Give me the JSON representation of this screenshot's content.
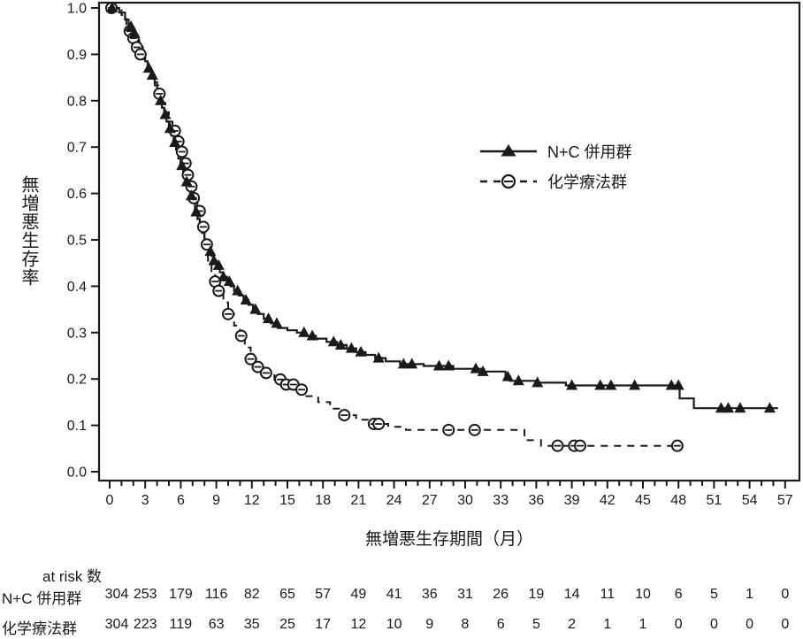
{
  "figure": {
    "background": "#ffffff",
    "ink_color": "#1a1a1a"
  },
  "chart_data": {
    "type": "line",
    "subtype": "kaplan-meier-step-curves",
    "title": "",
    "xlabel": "無増悪生存期間（月）",
    "ylabel": "無増悪生存率",
    "xlim": [
      0,
      57
    ],
    "ylim": [
      0.0,
      1.0
    ],
    "x_major_ticks": [
      0,
      3,
      6,
      9,
      12,
      15,
      18,
      21,
      24,
      27,
      30,
      33,
      36,
      39,
      42,
      45,
      48,
      51,
      54,
      57
    ],
    "x_minor_tick_interval": 1,
    "y_ticks": [
      0.0,
      0.1,
      0.2,
      0.3,
      0.4,
      0.5,
      0.6,
      0.7,
      0.8,
      0.9,
      1.0
    ],
    "grid": false,
    "legend_position": "inside-upper-right",
    "series": [
      {
        "name": "N+C 併用群",
        "line_style": "solid",
        "marker": "filled-triangle",
        "steps": [
          [
            0,
            1.0
          ],
          [
            0.8,
            0.99
          ],
          [
            1.3,
            0.975
          ],
          [
            1.6,
            0.96
          ],
          [
            1.9,
            0.945
          ],
          [
            2.2,
            0.93
          ],
          [
            2.5,
            0.915
          ],
          [
            2.8,
            0.9
          ],
          [
            3.0,
            0.885
          ],
          [
            3.2,
            0.87
          ],
          [
            3.5,
            0.855
          ],
          [
            3.8,
            0.84
          ],
          [
            4.0,
            0.82
          ],
          [
            4.2,
            0.8
          ],
          [
            4.4,
            0.785
          ],
          [
            4.6,
            0.77
          ],
          [
            4.8,
            0.755
          ],
          [
            5.0,
            0.74
          ],
          [
            5.2,
            0.725
          ],
          [
            5.4,
            0.71
          ],
          [
            5.6,
            0.695
          ],
          [
            5.8,
            0.675
          ],
          [
            6.0,
            0.66
          ],
          [
            6.2,
            0.64
          ],
          [
            6.4,
            0.625
          ],
          [
            6.6,
            0.61
          ],
          [
            6.8,
            0.595
          ],
          [
            7.0,
            0.58
          ],
          [
            7.2,
            0.56
          ],
          [
            7.4,
            0.545
          ],
          [
            7.6,
            0.53
          ],
          [
            7.8,
            0.515
          ],
          [
            8.0,
            0.5
          ],
          [
            8.2,
            0.49
          ],
          [
            8.4,
            0.475
          ],
          [
            8.6,
            0.465
          ],
          [
            8.8,
            0.455
          ],
          [
            9.0,
            0.445
          ],
          [
            9.3,
            0.43
          ],
          [
            9.6,
            0.42
          ],
          [
            9.9,
            0.41
          ],
          [
            10.2,
            0.4
          ],
          [
            10.5,
            0.39
          ],
          [
            10.9,
            0.38
          ],
          [
            11.3,
            0.37
          ],
          [
            11.7,
            0.36
          ],
          [
            12.1,
            0.35
          ],
          [
            12.5,
            0.34
          ],
          [
            13.0,
            0.33
          ],
          [
            13.6,
            0.32
          ],
          [
            14.2,
            0.31
          ],
          [
            15.0,
            0.305
          ],
          [
            15.8,
            0.3
          ],
          [
            16.6,
            0.293
          ],
          [
            17.4,
            0.287
          ],
          [
            18.3,
            0.28
          ],
          [
            19.2,
            0.273
          ],
          [
            20.0,
            0.266
          ],
          [
            20.8,
            0.258
          ],
          [
            21.6,
            0.252
          ],
          [
            22.4,
            0.245
          ],
          [
            23.3,
            0.238
          ],
          [
            24.5,
            0.232
          ],
          [
            26.5,
            0.228
          ],
          [
            29.0,
            0.222
          ],
          [
            31.5,
            0.216
          ],
          [
            33.4,
            0.205
          ],
          [
            33.8,
            0.196
          ],
          [
            36.0,
            0.192
          ],
          [
            38.5,
            0.186
          ],
          [
            48.1,
            0.158
          ],
          [
            49.3,
            0.137
          ],
          [
            56.4,
            0.137
          ]
        ],
        "censor_marker_months": [
          0.2,
          1.8,
          2.1,
          3.3,
          3.6,
          4.3,
          4.7,
          5.1,
          5.5,
          6.1,
          6.5,
          6.9,
          7.3,
          8.5,
          8.8,
          9.2,
          9.6,
          10.1,
          10.8,
          11.5,
          12.3,
          13.4,
          14.1,
          16.4,
          17.1,
          18.9,
          19.5,
          20.4,
          21.2,
          22.7,
          24.8,
          25.5,
          27.8,
          28.6,
          30.9,
          31.5,
          33.6,
          34.5,
          36.1,
          39.0,
          41.4,
          42.3,
          44.3,
          47.4,
          48.0,
          51.6,
          52.2,
          53.2,
          55.7
        ]
      },
      {
        "name": "化学療法群",
        "line_style": "dashed",
        "marker": "open-circle",
        "steps": [
          [
            0,
            1.0
          ],
          [
            1.0,
            0.985
          ],
          [
            1.4,
            0.965
          ],
          [
            1.7,
            0.95
          ],
          [
            2.0,
            0.935
          ],
          [
            2.3,
            0.915
          ],
          [
            2.6,
            0.9
          ],
          [
            2.9,
            0.885
          ],
          [
            3.2,
            0.868
          ],
          [
            3.5,
            0.85
          ],
          [
            3.8,
            0.833
          ],
          [
            4.1,
            0.815
          ],
          [
            4.4,
            0.795
          ],
          [
            4.7,
            0.775
          ],
          [
            5.0,
            0.755
          ],
          [
            5.3,
            0.735
          ],
          [
            5.6,
            0.712
          ],
          [
            5.9,
            0.69
          ],
          [
            6.2,
            0.665
          ],
          [
            6.5,
            0.64
          ],
          [
            6.8,
            0.615
          ],
          [
            7.1,
            0.59
          ],
          [
            7.4,
            0.562
          ],
          [
            7.7,
            0.528
          ],
          [
            8.0,
            0.49
          ],
          [
            8.3,
            0.455
          ],
          [
            8.6,
            0.432
          ],
          [
            8.9,
            0.41
          ],
          [
            9.2,
            0.39
          ],
          [
            9.6,
            0.365
          ],
          [
            10.0,
            0.34
          ],
          [
            10.5,
            0.315
          ],
          [
            11.0,
            0.293
          ],
          [
            11.4,
            0.268
          ],
          [
            11.9,
            0.243
          ],
          [
            12.4,
            0.226
          ],
          [
            13.1,
            0.213
          ],
          [
            13.9,
            0.199
          ],
          [
            14.8,
            0.188
          ],
          [
            15.7,
            0.177
          ],
          [
            16.6,
            0.163
          ],
          [
            17.6,
            0.15
          ],
          [
            18.6,
            0.136
          ],
          [
            19.6,
            0.122
          ],
          [
            20.8,
            0.112
          ],
          [
            22.0,
            0.103
          ],
          [
            23.5,
            0.097
          ],
          [
            25.0,
            0.09
          ],
          [
            35.0,
            0.068
          ],
          [
            36.4,
            0.056
          ],
          [
            48.0,
            0.056
          ]
        ],
        "censor_marker_months": [
          0.15,
          1.7,
          2.0,
          2.3,
          2.6,
          4.2,
          5.5,
          5.8,
          6.1,
          6.4,
          6.6,
          6.9,
          7.1,
          7.6,
          7.9,
          8.2,
          8.9,
          9.2,
          10.0,
          11.1,
          11.9,
          12.5,
          13.2,
          14.4,
          14.9,
          15.5,
          16.2,
          19.8,
          22.3,
          22.7,
          28.6,
          30.8,
          37.8,
          39.2,
          39.7,
          47.9
        ]
      }
    ]
  },
  "at_risk": {
    "header": "at risk 数",
    "months": [
      0,
      3,
      6,
      9,
      12,
      15,
      18,
      21,
      24,
      27,
      30,
      33,
      36,
      39,
      42,
      45,
      48,
      51,
      54,
      57
    ],
    "rows": [
      {
        "label": "N+C 併用群",
        "values": [
          304,
          253,
          179,
          116,
          82,
          65,
          57,
          49,
          41,
          36,
          31,
          26,
          19,
          14,
          11,
          10,
          6,
          5,
          1,
          0
        ]
      },
      {
        "label": "化学療法群",
        "values": [
          304,
          223,
          119,
          63,
          35,
          25,
          17,
          12,
          10,
          9,
          8,
          6,
          5,
          2,
          1,
          1,
          0,
          0,
          0,
          0
        ]
      }
    ]
  }
}
